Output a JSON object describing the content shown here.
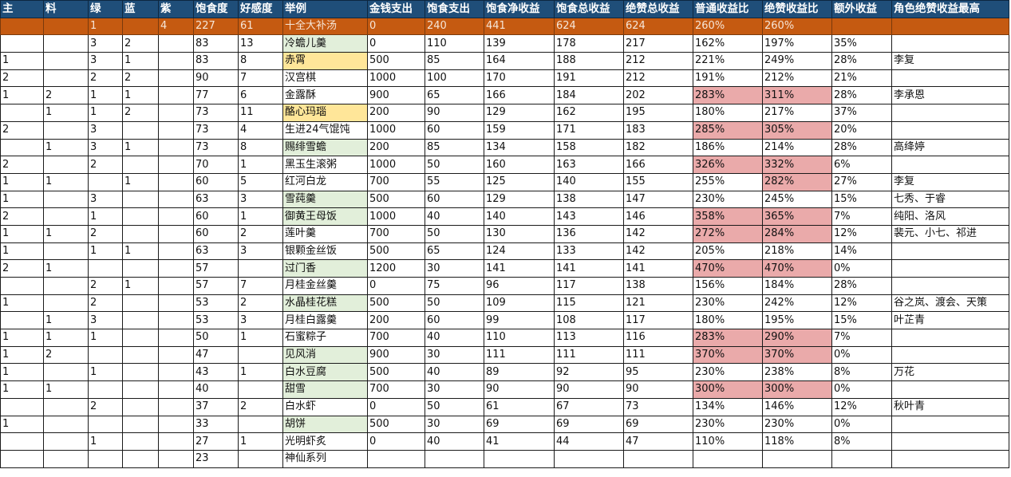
{
  "sheet": {
    "colors": {
      "header_bg": "#1f4e79",
      "header_text": "#ffffff",
      "highlight_row_bg": "#c55a11",
      "green_fill": "#e2efda",
      "yellow_fill": "#ffe699",
      "red_fill": "#eaaaaa"
    },
    "headers": [
      "主",
      "料",
      "绿",
      "蓝",
      "紫",
      "饱食度",
      "好感度",
      "举例",
      "金钱支出",
      "饱食支出",
      "饱食净收益",
      "饱食总收益",
      "绝赞总收益",
      "普通收益比",
      "绝赞收益比",
      "额外收益",
      "角色绝赞收益最高"
    ],
    "rows": [
      {
        "cells": [
          "",
          "",
          "1",
          "",
          "4",
          "227",
          "61",
          "十全大补汤",
          "0",
          "240",
          "441",
          "624",
          "624",
          "260%",
          "260%",
          "",
          ""
        ],
        "style": "highlight"
      },
      {
        "cells": [
          "",
          "",
          "3",
          "2",
          "",
          "83",
          "13",
          "冷蟾儿羹",
          "0",
          "110",
          "139",
          "178",
          "217",
          "162%",
          "197%",
          "35%",
          ""
        ],
        "name_fill": "green"
      },
      {
        "cells": [
          "1",
          "",
          "3",
          "1",
          "",
          "83",
          "8",
          "赤霄",
          "500",
          "85",
          "164",
          "188",
          "212",
          "221%",
          "249%",
          "28%",
          "李复"
        ],
        "name_fill": "yellow"
      },
      {
        "cells": [
          "2",
          "",
          "2",
          "2",
          "",
          "90",
          "7",
          "汉宫棋",
          "1000",
          "100",
          "170",
          "191",
          "212",
          "191%",
          "212%",
          "21%",
          ""
        ]
      },
      {
        "cells": [
          "1",
          "2",
          "1",
          "1",
          "",
          "77",
          "6",
          "金露酥",
          "900",
          "65",
          "166",
          "184",
          "202",
          "283%",
          "311%",
          "28%",
          "李承恩"
        ],
        "ratio_fill": "red"
      },
      {
        "cells": [
          "",
          "1",
          "1",
          "2",
          "",
          "73",
          "11",
          "酪心玛瑙",
          "200",
          "90",
          "129",
          "162",
          "195",
          "180%",
          "217%",
          "37%",
          ""
        ],
        "name_fill": "yellow"
      },
      {
        "cells": [
          "2",
          "",
          "3",
          "",
          "",
          "73",
          "4",
          "生进24气馄饨",
          "1000",
          "60",
          "159",
          "171",
          "183",
          "285%",
          "305%",
          "20%",
          ""
        ],
        "ratio_fill": "red"
      },
      {
        "cells": [
          "",
          "1",
          "3",
          "1",
          "",
          "73",
          "8",
          "赐绯雪蟾",
          "200",
          "85",
          "134",
          "158",
          "182",
          "186%",
          "214%",
          "28%",
          "高绛婷"
        ],
        "name_fill": "green"
      },
      {
        "cells": [
          "2",
          "",
          "2",
          "",
          "",
          "70",
          "1",
          "黑玉生滚粥",
          "1000",
          "50",
          "160",
          "163",
          "166",
          "326%",
          "332%",
          "6%",
          ""
        ],
        "ratio_fill": "red"
      },
      {
        "cells": [
          "1",
          "1",
          "",
          "1",
          "",
          "60",
          "5",
          "红河白龙",
          "700",
          "55",
          "125",
          "140",
          "155",
          "255%",
          "282%",
          "27%",
          "李复"
        ],
        "ratio_fill": "red_second"
      },
      {
        "cells": [
          "1",
          "",
          "3",
          "",
          "",
          "63",
          "3",
          "雪莼羹",
          "500",
          "60",
          "129",
          "138",
          "147",
          "230%",
          "245%",
          "15%",
          "七秀、于睿"
        ],
        "name_fill": "green"
      },
      {
        "cells": [
          "2",
          "",
          "1",
          "",
          "",
          "60",
          "1",
          "御黄王母饭",
          "1000",
          "40",
          "140",
          "143",
          "146",
          "358%",
          "365%",
          "7%",
          "纯阳、洛风"
        ],
        "name_fill": "green",
        "ratio_fill": "red"
      },
      {
        "cells": [
          "1",
          "1",
          "2",
          "",
          "",
          "60",
          "2",
          "莲叶羹",
          "700",
          "50",
          "130",
          "136",
          "142",
          "272%",
          "284%",
          "12%",
          "裴元、小七、祁进"
        ],
        "ratio_fill": "red"
      },
      {
        "cells": [
          "1",
          "",
          "1",
          "1",
          "",
          "63",
          "3",
          "银颗金丝饭",
          "500",
          "65",
          "124",
          "133",
          "142",
          "205%",
          "218%",
          "14%",
          ""
        ]
      },
      {
        "cells": [
          "2",
          "1",
          "",
          "",
          "",
          "57",
          "",
          "过门香",
          "1200",
          "30",
          "141",
          "141",
          "141",
          "470%",
          "470%",
          "0%",
          ""
        ],
        "name_fill": "green",
        "ratio_fill": "red"
      },
      {
        "cells": [
          "",
          "",
          "2",
          "1",
          "",
          "57",
          "7",
          "月桂金丝羹",
          "0",
          "75",
          "96",
          "117",
          "138",
          "156%",
          "184%",
          "28%",
          ""
        ]
      },
      {
        "cells": [
          "1",
          "",
          "2",
          "",
          "",
          "53",
          "2",
          "水晶桂花糕",
          "500",
          "50",
          "109",
          "115",
          "121",
          "230%",
          "242%",
          "12%",
          "谷之岚、渡会、天策"
        ],
        "name_fill": "green"
      },
      {
        "cells": [
          "",
          "1",
          "3",
          "",
          "",
          "53",
          "3",
          "月桂白露羹",
          "200",
          "60",
          "99",
          "108",
          "117",
          "180%",
          "195%",
          "15%",
          "叶芷青"
        ]
      },
      {
        "cells": [
          "1",
          "1",
          "1",
          "",
          "",
          "50",
          "1",
          "石蜜粽子",
          "700",
          "40",
          "110",
          "113",
          "116",
          "283%",
          "290%",
          "7%",
          ""
        ],
        "ratio_fill": "red"
      },
      {
        "cells": [
          "1",
          "2",
          "",
          "",
          "",
          "47",
          "",
          "见风消",
          "900",
          "30",
          "111",
          "111",
          "111",
          "370%",
          "370%",
          "0%",
          ""
        ],
        "name_fill": "green",
        "ratio_fill": "red"
      },
      {
        "cells": [
          "1",
          "",
          "1",
          "",
          "",
          "43",
          "1",
          "白水豆腐",
          "500",
          "40",
          "89",
          "92",
          "95",
          "230%",
          "238%",
          "8%",
          "万花"
        ],
        "name_fill": "green"
      },
      {
        "cells": [
          "1",
          "1",
          "",
          "",
          "",
          "40",
          "",
          "甜雪",
          "700",
          "30",
          "90",
          "90",
          "90",
          "300%",
          "300%",
          "0%",
          ""
        ],
        "name_fill": "green",
        "ratio_fill": "red"
      },
      {
        "cells": [
          "",
          "",
          "2",
          "",
          "",
          "37",
          "2",
          "白水虾",
          "0",
          "50",
          "61",
          "67",
          "73",
          "134%",
          "146%",
          "12%",
          "秋叶青"
        ]
      },
      {
        "cells": [
          "1",
          "",
          "",
          "",
          "",
          "33",
          "",
          "胡饼",
          "500",
          "30",
          "69",
          "69",
          "69",
          "230%",
          "230%",
          "0%",
          ""
        ],
        "name_fill": "green"
      },
      {
        "cells": [
          "",
          "",
          "1",
          "",
          "",
          "27",
          "1",
          "光明虾炙",
          "0",
          "40",
          "41",
          "44",
          "47",
          "110%",
          "118%",
          "8%",
          ""
        ]
      },
      {
        "cells": [
          "",
          "",
          "",
          "",
          "",
          "23",
          "",
          "神仙系列",
          "",
          "",
          "",
          "",
          "",
          "",
          "",
          "",
          ""
        ]
      }
    ]
  }
}
